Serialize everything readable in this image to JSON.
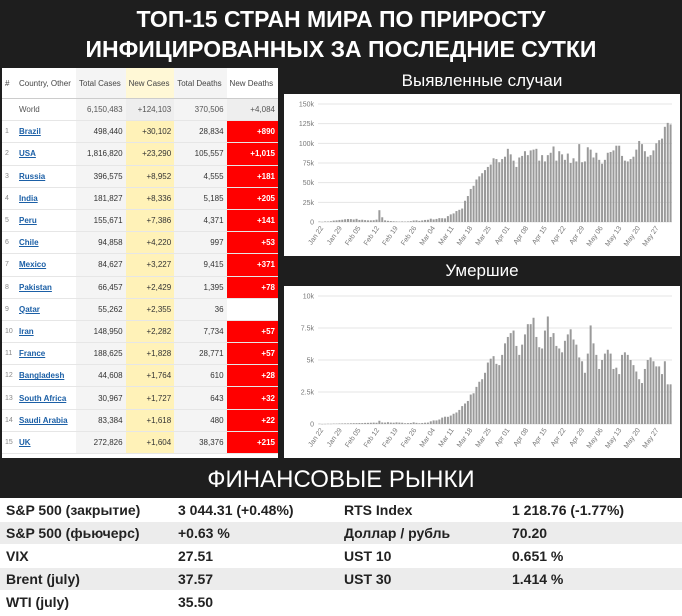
{
  "header": {
    "line1": "ТОП-15 СТРАН МИРА ПО ПРИРОСТУ",
    "line2": "ИНФИЦИРОВАННЫХ ЗА ПОСЛЕДНИЕ СУТКИ"
  },
  "table": {
    "headers": {
      "idx": "#",
      "country": "Country, Other",
      "total_cases": "Total Cases",
      "new_cases": "New Cases",
      "total_deaths": "Total Deaths",
      "new_deaths": "New Deaths"
    },
    "world": {
      "country": "World",
      "total_cases": "6,150,483",
      "new_cases": "+124,103",
      "total_deaths": "370,506",
      "new_deaths": "+4,084"
    },
    "rows": [
      {
        "idx": "1",
        "country": "Brazil",
        "total_cases": "498,440",
        "new_cases": "+30,102",
        "total_deaths": "28,834",
        "new_deaths": "+890"
      },
      {
        "idx": "2",
        "country": "USA",
        "total_cases": "1,816,820",
        "new_cases": "+23,290",
        "total_deaths": "105,557",
        "new_deaths": "+1,015"
      },
      {
        "idx": "3",
        "country": "Russia",
        "total_cases": "396,575",
        "new_cases": "+8,952",
        "total_deaths": "4,555",
        "new_deaths": "+181"
      },
      {
        "idx": "4",
        "country": "India",
        "total_cases": "181,827",
        "new_cases": "+8,336",
        "total_deaths": "5,185",
        "new_deaths": "+205"
      },
      {
        "idx": "5",
        "country": "Peru",
        "total_cases": "155,671",
        "new_cases": "+7,386",
        "total_deaths": "4,371",
        "new_deaths": "+141"
      },
      {
        "idx": "6",
        "country": "Chile",
        "total_cases": "94,858",
        "new_cases": "+4,220",
        "total_deaths": "997",
        "new_deaths": "+53"
      },
      {
        "idx": "7",
        "country": "Mexico",
        "total_cases": "84,627",
        "new_cases": "+3,227",
        "total_deaths": "9,415",
        "new_deaths": "+371"
      },
      {
        "idx": "8",
        "country": "Pakistan",
        "total_cases": "66,457",
        "new_cases": "+2,429",
        "total_deaths": "1,395",
        "new_deaths": "+78"
      },
      {
        "idx": "9",
        "country": "Qatar",
        "total_cases": "55,262",
        "new_cases": "+2,355",
        "total_deaths": "36",
        "new_deaths": ""
      },
      {
        "idx": "10",
        "country": "Iran",
        "total_cases": "148,950",
        "new_cases": "+2,282",
        "total_deaths": "7,734",
        "new_deaths": "+57"
      },
      {
        "idx": "11",
        "country": "France",
        "total_cases": "188,625",
        "new_cases": "+1,828",
        "total_deaths": "28,771",
        "new_deaths": "+57"
      },
      {
        "idx": "12",
        "country": "Bangladesh",
        "total_cases": "44,608",
        "new_cases": "+1,764",
        "total_deaths": "610",
        "new_deaths": "+28"
      },
      {
        "idx": "13",
        "country": "South Africa",
        "total_cases": "30,967",
        "new_cases": "+1,727",
        "total_deaths": "643",
        "new_deaths": "+32"
      },
      {
        "idx": "14",
        "country": "Saudi Arabia",
        "total_cases": "83,384",
        "new_cases": "+1,618",
        "total_deaths": "480",
        "new_deaths": "+22"
      },
      {
        "idx": "15",
        "country": "UK",
        "total_cases": "272,826",
        "new_cases": "+1,604",
        "total_deaths": "38,376",
        "new_deaths": "+215"
      }
    ]
  },
  "chart_data": [
    {
      "type": "bar",
      "title": "Выявленные случаи",
      "ylim": [
        0,
        150000
      ],
      "yticks": [
        "0",
        "25k",
        "50k",
        "75k",
        "100k",
        "125k",
        "150k"
      ],
      "xticks": [
        "Jan 22",
        "Jan 29",
        "Feb 05",
        "Feb 12",
        "Feb 19",
        "Feb 26",
        "Mar 04",
        "Mar 11",
        "Mar 18",
        "Mar 25",
        "Apr 01",
        "Apr 08",
        "Apr 15",
        "Apr 22",
        "Apr 29",
        "May 06",
        "May 13",
        "May 20",
        "May 27"
      ],
      "values": [
        500,
        200,
        700,
        600,
        1000,
        1800,
        2100,
        2600,
        2900,
        3500,
        3800,
        3700,
        3200,
        4000,
        2600,
        2900,
        2400,
        2100,
        2100,
        2300,
        3000,
        15000,
        6000,
        2100,
        1500,
        1200,
        900,
        700,
        500,
        700,
        500,
        700,
        1100,
        1900,
        2100,
        1400,
        2000,
        2600,
        2800,
        4200,
        3300,
        3900,
        4900,
        4800,
        4600,
        7500,
        9700,
        10900,
        13900,
        15500,
        17100,
        27000,
        33000,
        42000,
        46000,
        54000,
        58000,
        62000,
        66000,
        70000,
        73000,
        81000,
        80000,
        76000,
        80000,
        83000,
        93000,
        86000,
        78000,
        70000,
        82000,
        84000,
        90000,
        85000,
        91000,
        92000,
        93000,
        78000,
        85000,
        77000,
        85000,
        88000,
        96000,
        78000,
        90000,
        86000,
        79000,
        87000,
        75000,
        81000,
        77000,
        99000,
        76000,
        77000,
        95000,
        92000,
        82000,
        88000,
        79000,
        74000,
        79000,
        88000,
        89000,
        91000,
        97000,
        97000,
        84000,
        78000,
        77000,
        80000,
        83000,
        92000,
        103000,
        99000,
        90000,
        83000,
        85000,
        91000,
        100000,
        104000,
        106000,
        121000,
        126000,
        124000
      ]
    },
    {
      "type": "bar",
      "title": "Умершие",
      "ylim": [
        0,
        10000
      ],
      "yticks": [
        "0",
        "2.5k",
        "5k",
        "7.5k",
        "10k"
      ],
      "xticks": [
        "Jan 22",
        "Jan 29",
        "Feb 05",
        "Feb 12",
        "Feb 19",
        "Feb 26",
        "Mar 04",
        "Mar 11",
        "Mar 18",
        "Mar 25",
        "Apr 01",
        "Apr 08",
        "Apr 15",
        "Apr 22",
        "Apr 29",
        "May 06",
        "May 13",
        "May 20",
        "May 27"
      ],
      "values": [
        17,
        1,
        8,
        16,
        14,
        26,
        26,
        38,
        43,
        46,
        45,
        57,
        64,
        66,
        73,
        73,
        86,
        89,
        97,
        108,
        97,
        254,
        121,
        109,
        140,
        110,
        100,
        128,
        110,
        100,
        60,
        70,
        80,
        130,
        90,
        60,
        80,
        100,
        110,
        210,
        280,
        280,
        350,
        500,
        570,
        560,
        660,
        800,
        900,
        1100,
        1400,
        1600,
        1800,
        2300,
        2400,
        2900,
        3300,
        3500,
        4000,
        4800,
        5100,
        5300,
        4700,
        4600,
        5400,
        6300,
        6800,
        7100,
        7300,
        6100,
        5400,
        6200,
        7000,
        7800,
        7800,
        8300,
        6800,
        6000,
        5900,
        7300,
        8400,
        6800,
        7100,
        6100,
        5900,
        5600,
        6500,
        7000,
        7400,
        6600,
        6200,
        5200,
        4900,
        4000,
        5500,
        7700,
        6300,
        5400,
        4300,
        5000,
        5500,
        5800,
        5500,
        4300,
        4400,
        3900,
        5400,
        5600,
        5400,
        5000,
        4600,
        4100,
        3500,
        3200,
        4300,
        5000,
        5200,
        4900,
        4500,
        4500,
        3900,
        4900,
        3100,
        3100
      ]
    }
  ],
  "finance": {
    "title": "ФИНАНСОВЫЕ РЫНКИ",
    "rows": [
      {
        "l1": "S&P 500 (закрытие)",
        "v1": "3 044.31 (+0.48%)",
        "l2": "RTS Index",
        "v2": "1 218.76 (-1.77%)"
      },
      {
        "l1": "S&P 500 (фьючерс)",
        "v1": "+0.63 %",
        "l2": "Доллар / рубль",
        "v2": "70.20"
      },
      {
        "l1": "VIX",
        "v1": "27.51",
        "l2": "UST 10",
        "v2": "0.651 %"
      },
      {
        "l1": "Brent (july)",
        "v1": "37.57",
        "l2": "UST 30",
        "v2": "1.414 %"
      },
      {
        "l1": "WTI (july)",
        "v1": "35.50",
        "l2": "",
        "v2": ""
      }
    ]
  }
}
